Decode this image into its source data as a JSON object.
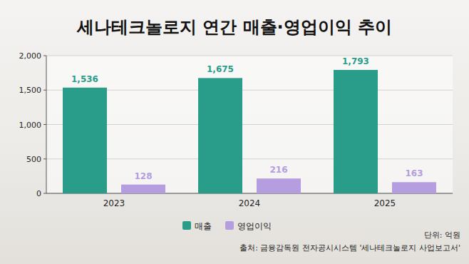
{
  "chart_data": {
    "type": "bar",
    "title": "세나테크놀로지 연간 매출·영업이익 추이",
    "categories": [
      "2023",
      "2024",
      "2025"
    ],
    "series": [
      {
        "name": "매출",
        "color": "#2a9d8a",
        "values": [
          1536,
          1675,
          1793
        ],
        "value_labels": [
          "1,536",
          "1,675",
          "1,793"
        ]
      },
      {
        "name": "영업이익",
        "color": "#b49ee0",
        "values": [
          128,
          216,
          163
        ]
      }
    ],
    "ylim": [
      0,
      2000
    ],
    "yticks": [
      0,
      500,
      {
        "value": 1000,
        "label": "1,000"
      },
      {
        "value": 1500,
        "label": "1,500"
      },
      {
        "value": 2000,
        "label": "2,000"
      }
    ],
    "grid": true,
    "data_labels": true,
    "legend": "bottom",
    "annotations": [
      "단위: 억원",
      "출처: 금융감독원 전자공시시스템 '세나테크놀로지 사업보고서'"
    ]
  }
}
